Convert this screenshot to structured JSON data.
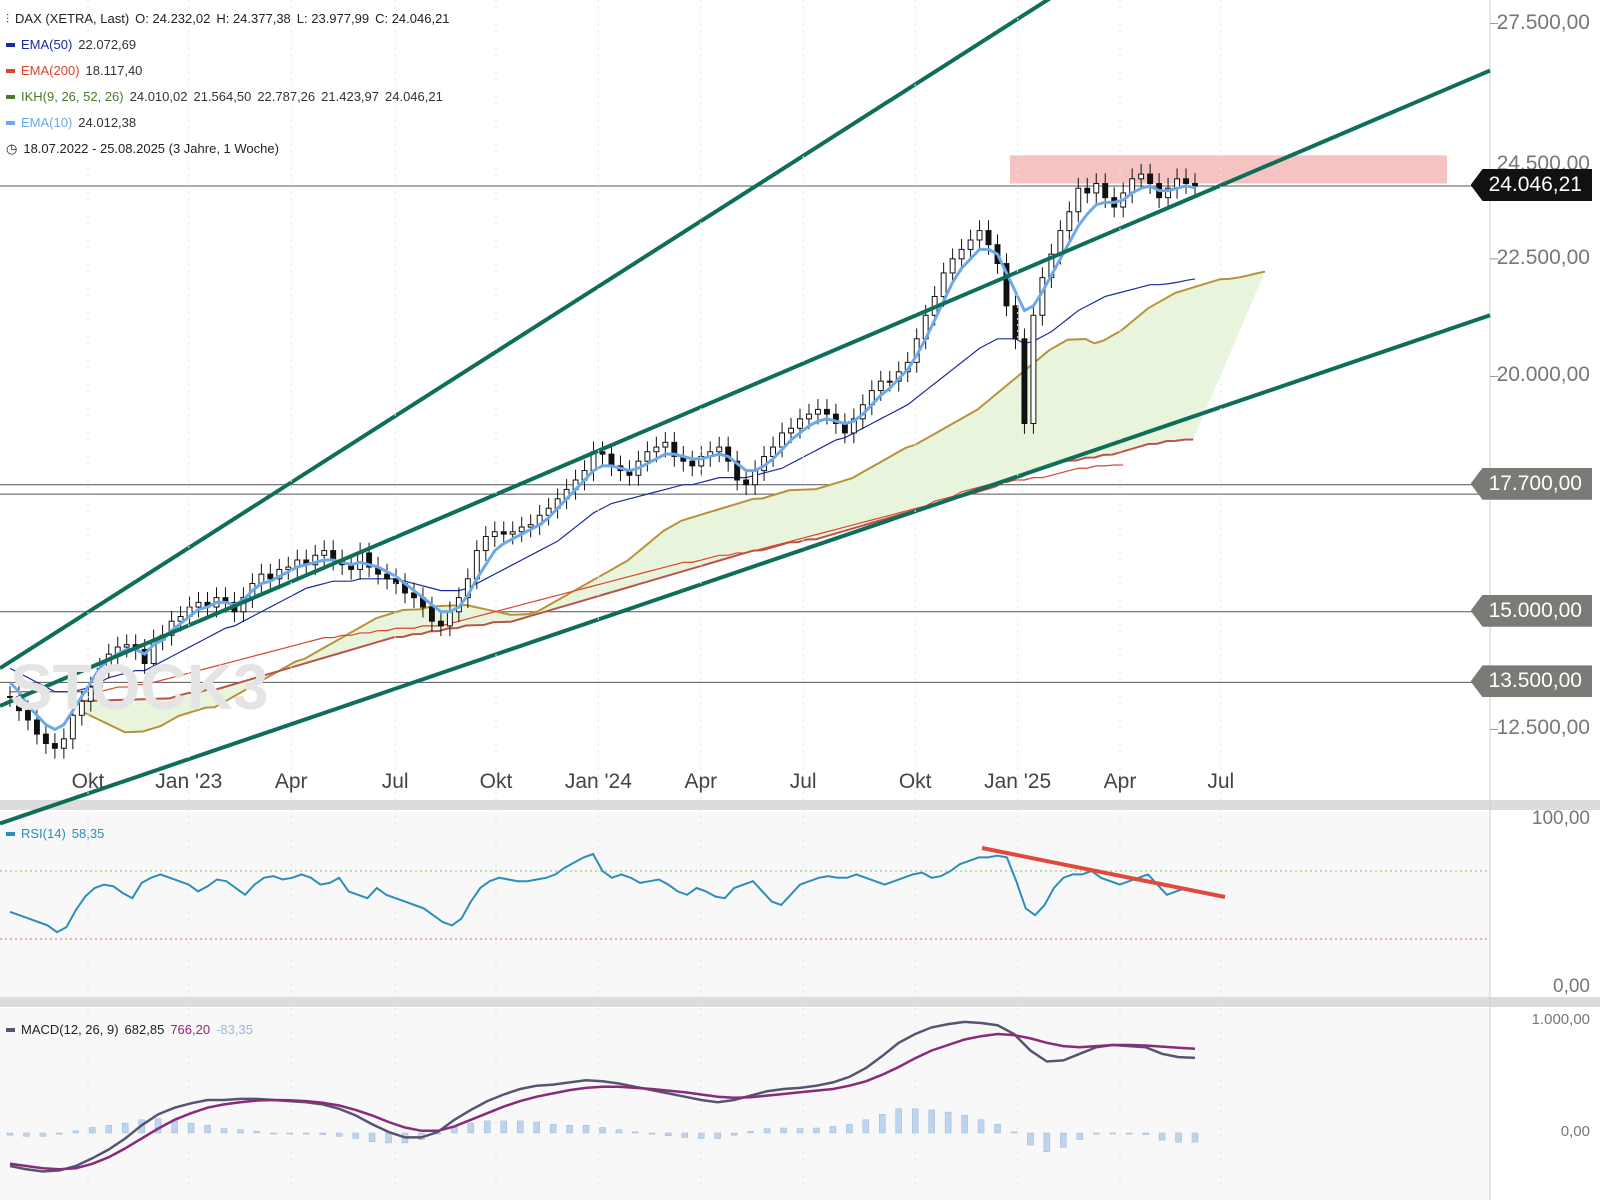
{
  "header": {
    "symbol": "DAX (XETRA, Last)",
    "open": "O: 24.232,02",
    "high": "H: 24.377,38",
    "low": "L: 23.977,99",
    "close": "C: 24.046,21"
  },
  "legend": [
    {
      "name": "EMA(50)",
      "values": [
        "22.072,69"
      ],
      "color": "#1a2aa0"
    },
    {
      "name": "EMA(200)",
      "values": [
        "18.117,40"
      ],
      "color": "#d9452f"
    },
    {
      "name": "IKH(9, 26, 52, 26)",
      "values": [
        "24.010,02",
        "21.564,50",
        "22.787,26",
        "21.423,97",
        "24.046,21"
      ],
      "color": "#4a7a2a"
    },
    {
      "name": "EMA(10)",
      "values": [
        "24.012,38"
      ],
      "color": "#6aaae8"
    }
  ],
  "period": "18.07.2022 - 25.08.2025  (3 Jahre, 1 Woche)",
  "watermark": "STOCK3",
  "price_axis": {
    "ticks": [
      {
        "value": 27500,
        "label": "27.500,00"
      },
      {
        "value": 22500,
        "label": "22.500,00"
      },
      {
        "value": 20000,
        "label": "20.000,00"
      },
      {
        "value": 12500,
        "label": "12.500,00"
      }
    ],
    "tags": [
      {
        "value": 24046.21,
        "label": "24.046,21",
        "color": "#111111"
      },
      {
        "value": 17700,
        "label": "17.700,00",
        "color": "#7a7a76"
      },
      {
        "value": 15000,
        "label": "15.000,00",
        "color": "#7a7a76"
      },
      {
        "value": 13500,
        "label": "13.500,00",
        "color": "#7a7a76"
      }
    ],
    "hidden_label": "24.500,00"
  },
  "x_labels": [
    {
      "label": "Okt",
      "pos": 0.055
    },
    {
      "label": "Jan '23",
      "pos": 0.118
    },
    {
      "label": "Apr",
      "pos": 0.182
    },
    {
      "label": "Jul",
      "pos": 0.247
    },
    {
      "label": "Okt",
      "pos": 0.31
    },
    {
      "label": "Jan '24",
      "pos": 0.374
    },
    {
      "label": "Apr",
      "pos": 0.438
    },
    {
      "label": "Jul",
      "pos": 0.502
    },
    {
      "label": "Okt",
      "pos": 0.572
    },
    {
      "label": "Jan '25",
      "pos": 0.636
    },
    {
      "label": "Apr",
      "pos": 0.7
    },
    {
      "label": "Jul",
      "pos": 0.763
    }
  ],
  "rsi": {
    "name": "RSI(14)",
    "value": "58,35",
    "color": "#2a8fb8",
    "axis": [
      "100,00",
      "0,00"
    ]
  },
  "macd": {
    "name": "MACD(12, 26, 9)",
    "values": [
      "682,85",
      "766,20",
      "-83,35"
    ],
    "axis": [
      "1.000,00",
      "0,00"
    ]
  },
  "chart_data": {
    "type": "candlestick",
    "title": "DAX (XETRA, Last)",
    "period": "18.07.2022 - 25.08.2025",
    "close_series": [
      13200,
      12900,
      12700,
      12400,
      12200,
      12100,
      12300,
      12800,
      13100,
      13400,
      13800,
      14100,
      14250,
      14300,
      14200,
      13900,
      14400,
      14500,
      14800,
      14900,
      15100,
      15200,
      15100,
      15300,
      15200,
      15000,
      15300,
      15600,
      15800,
      15700,
      15900,
      15950,
      16100,
      16000,
      16200,
      16300,
      16100,
      16000,
      15900,
      16250,
      15950,
      15800,
      15700,
      15600,
      15400,
      15300,
      15100,
      14800,
      14700,
      15000,
      15300,
      15700,
      16300,
      16600,
      16700,
      16650,
      16700,
      16800,
      16850,
      17050,
      17200,
      17400,
      17600,
      17800,
      18000,
      18400,
      18350,
      18100,
      18000,
      17900,
      18200,
      18400,
      18500,
      18600,
      18300,
      18200,
      18100,
      18300,
      18400,
      18500,
      18200,
      17800,
      17700,
      18000,
      18300,
      18500,
      18800,
      18900,
      19100,
      19200,
      19300,
      19200,
      19000,
      18800,
      19100,
      19400,
      19700,
      19900,
      19900,
      20100,
      20300,
      20800,
      21300,
      21700,
      22200,
      22500,
      22700,
      22900,
      23100,
      22800,
      22400,
      21500,
      20800,
      19000,
      21300,
      22100,
      22600,
      23100,
      23500,
      24000,
      23900,
      24100,
      23800,
      23600,
      23900,
      24200,
      24300,
      24100,
      23800,
      24000,
      24200,
      24100,
      24046
    ],
    "ema10": [
      13500,
      13300,
      13000,
      12800,
      12600,
      12500,
      12600,
      12900,
      13200,
      13500,
      13800,
      14000,
      14100,
      14200,
      14200,
      14100,
      14300,
      14400,
      14600,
      14750,
      14900,
      15050,
      15100,
      15200,
      15200,
      15150,
      15250,
      15450,
      15600,
      15650,
      15750,
      15850,
      15950,
      16000,
      16050,
      16100,
      16100,
      16050,
      16000,
      16050,
      16000,
      15950,
      15850,
      15750,
      15600,
      15450,
      15300,
      15150,
      15000,
      15000,
      15100,
      15350,
      15700,
      16000,
      16300,
      16450,
      16550,
      16650,
      16750,
      16850,
      17000,
      17200,
      17400,
      17600,
      17800,
      18000,
      18100,
      18100,
      18050,
      18000,
      18050,
      18150,
      18250,
      18350,
      18350,
      18300,
      18250,
      18250,
      18300,
      18350,
      18300,
      18150,
      18000,
      18000,
      18100,
      18250,
      18450,
      18650,
      18800,
      18950,
      19050,
      19100,
      19050,
      19000,
      19050,
      19200,
      19400,
      19600,
      19750,
      19950,
      20150,
      20450,
      20800,
      21200,
      21600,
      22000,
      22300,
      22500,
      22700,
      22700,
      22600,
      22200,
      21800,
      21400,
      21500,
      21800,
      22150,
      22500,
      22850,
      23200,
      23450,
      23650,
      23700,
      23700,
      23750,
      23900,
      24000,
      24050,
      23950,
      23950,
      24000,
      24050,
      24012
    ],
    "ema50": [
      13800,
      13700,
      13600,
      13500,
      13400,
      13300,
      13300,
      13300,
      13350,
      13400,
      13500,
      13600,
      13650,
      13700,
      13750,
      13750,
      13850,
      13950,
      14050,
      14150,
      14250,
      14350,
      14450,
      14550,
      14650,
      14700,
      14800,
      14900,
      15000,
      15100,
      15200,
      15300,
      15400,
      15500,
      15550,
      15600,
      15650,
      15650,
      15650,
      15700,
      15700,
      15700,
      15700,
      15700,
      15650,
      15600,
      15550,
      15500,
      15450,
      15450,
      15450,
      15500,
      15600,
      15700,
      15800,
      15900,
      16000,
      16100,
      16200,
      16300,
      16400,
      16500,
      16650,
      16800,
      16950,
      17100,
      17200,
      17300,
      17350,
      17400,
      17450,
      17500,
      17550,
      17600,
      17650,
      17700,
      17700,
      17750,
      17800,
      17850,
      17850,
      17850,
      17850,
      17900,
      17950,
      18000,
      18050,
      18150,
      18250,
      18350,
      18450,
      18550,
      18650,
      18700,
      18800,
      18900,
      19000,
      19100,
      19200,
      19300,
      19400,
      19550,
      19700,
      19850,
      20000,
      20150,
      20300,
      20450,
      20600,
      20700,
      20800,
      20800,
      20800,
      20700,
      20750,
      20850,
      20950,
      21100,
      21250,
      21400,
      21500,
      21600,
      21700,
      21750,
      21800,
      21850,
      21900,
      21950,
      21950,
      21970,
      22000,
      22040,
      22073
    ],
    "ema200": [
      13300,
      13300,
      13300,
      13300,
      13300,
      13300,
      13300,
      13300,
      13300,
      13300,
      13300,
      13350,
      13400,
      13400,
      13450,
      13450,
      13500,
      13550,
      13600,
      13650,
      13700,
      13750,
      13800,
      13850,
      13900,
      13950,
      14000,
      14050,
      14100,
      14150,
      14200,
      14250,
      14300,
      14350,
      14400,
      14450,
      14450,
      14500,
      14500,
      14550,
      14550,
      14600,
      14600,
      14650,
      14650,
      14650,
      14700,
      14700,
      14700,
      14750,
      14800,
      14850,
      14900,
      14950,
      15000,
      15050,
      15100,
      15150,
      15200,
      15250,
      15300,
      15350,
      15400,
      15450,
      15500,
      15550,
      15600,
      15650,
      15700,
      15750,
      15800,
      15850,
      15900,
      15950,
      16000,
      16050,
      16050,
      16100,
      16150,
      16200,
      16200,
      16250,
      16250,
      16300,
      16350,
      16400,
      16450,
      16500,
      16550,
      16600,
      16650,
      16700,
      16750,
      16800,
      16850,
      16900,
      16950,
      17000,
      17050,
      17100,
      17150,
      17200,
      17250,
      17350,
      17400,
      17450,
      17550,
      17600,
      17650,
      17700,
      17750,
      17750,
      17800,
      17800,
      17850,
      17850,
      17900,
      17950,
      18000,
      18050,
      18050,
      18100,
      18100,
      18120,
      18117
    ],
    "rsi14": [
      46,
      44,
      42,
      40,
      38,
      34,
      37,
      47,
      55,
      60,
      62,
      61,
      57,
      54,
      63,
      66,
      68,
      66,
      64,
      62,
      58,
      61,
      65,
      64,
      60,
      56,
      62,
      66,
      67,
      65,
      66,
      68,
      66,
      62,
      63,
      66,
      58,
      56,
      54,
      60,
      56,
      54,
      52,
      50,
      48,
      44,
      40,
      38,
      42,
      52,
      60,
      64,
      66,
      65,
      64,
      64,
      65,
      66,
      68,
      72,
      75,
      78,
      80,
      70,
      66,
      68,
      66,
      63,
      64,
      65,
      62,
      58,
      56,
      60,
      58,
      55,
      54,
      60,
      62,
      64,
      58,
      52,
      50,
      56,
      62,
      64,
      66,
      67,
      66,
      66,
      68,
      66,
      64,
      62,
      64,
      66,
      68,
      69,
      66,
      67,
      70,
      74,
      76,
      78,
      78,
      79,
      78,
      64,
      48,
      44,
      50,
      60,
      66,
      68,
      68,
      70,
      66,
      64,
      62,
      64,
      66,
      68,
      62,
      56,
      58,
      60,
      58.35
    ],
    "macd": [
      -300,
      -330,
      -350,
      -340,
      -300,
      -230,
      -150,
      -50,
      70,
      170,
      230,
      270,
      300,
      300,
      310,
      310,
      300,
      290,
      280,
      260,
      220,
      160,
      80,
      10,
      -40,
      -40,
      10,
      120,
      210,
      290,
      350,
      400,
      430,
      440,
      460,
      480,
      470,
      450,
      420,
      390,
      360,
      330,
      300,
      280,
      300,
      340,
      380,
      400,
      410,
      430,
      460,
      510,
      590,
      700,
      820,
      900,
      960,
      990,
      1010,
      1000,
      980,
      900,
      750,
      650,
      660,
      720,
      780,
      800,
      790,
      780,
      720,
      690,
      683
    ],
    "signal": [
      -280,
      -300,
      -320,
      -330,
      -320,
      -280,
      -220,
      -140,
      -50,
      40,
      120,
      180,
      230,
      260,
      280,
      295,
      300,
      298,
      290,
      275,
      250,
      210,
      160,
      100,
      50,
      20,
      20,
      60,
      120,
      180,
      240,
      290,
      330,
      360,
      390,
      410,
      420,
      420,
      410,
      400,
      385,
      370,
      350,
      330,
      320,
      325,
      340,
      355,
      370,
      385,
      400,
      430,
      470,
      530,
      600,
      680,
      750,
      800,
      850,
      880,
      900,
      890,
      860,
      820,
      790,
      780,
      790,
      800,
      800,
      795,
      785,
      775,
      766
    ],
    "channel_lines": [
      {
        "name": "upper",
        "start": 13800,
        "end": 34000
      },
      {
        "name": "middle",
        "start": 13000,
        "end": 26500
      },
      {
        "name": "lower",
        "start": 10500,
        "end": 21300
      }
    ],
    "resistance_zone": [
      24100,
      24700
    ],
    "horizontal_levels": [
      17700,
      17500,
      15000,
      13500,
      24046.21
    ],
    "ylim": [
      11000,
      28000
    ]
  }
}
